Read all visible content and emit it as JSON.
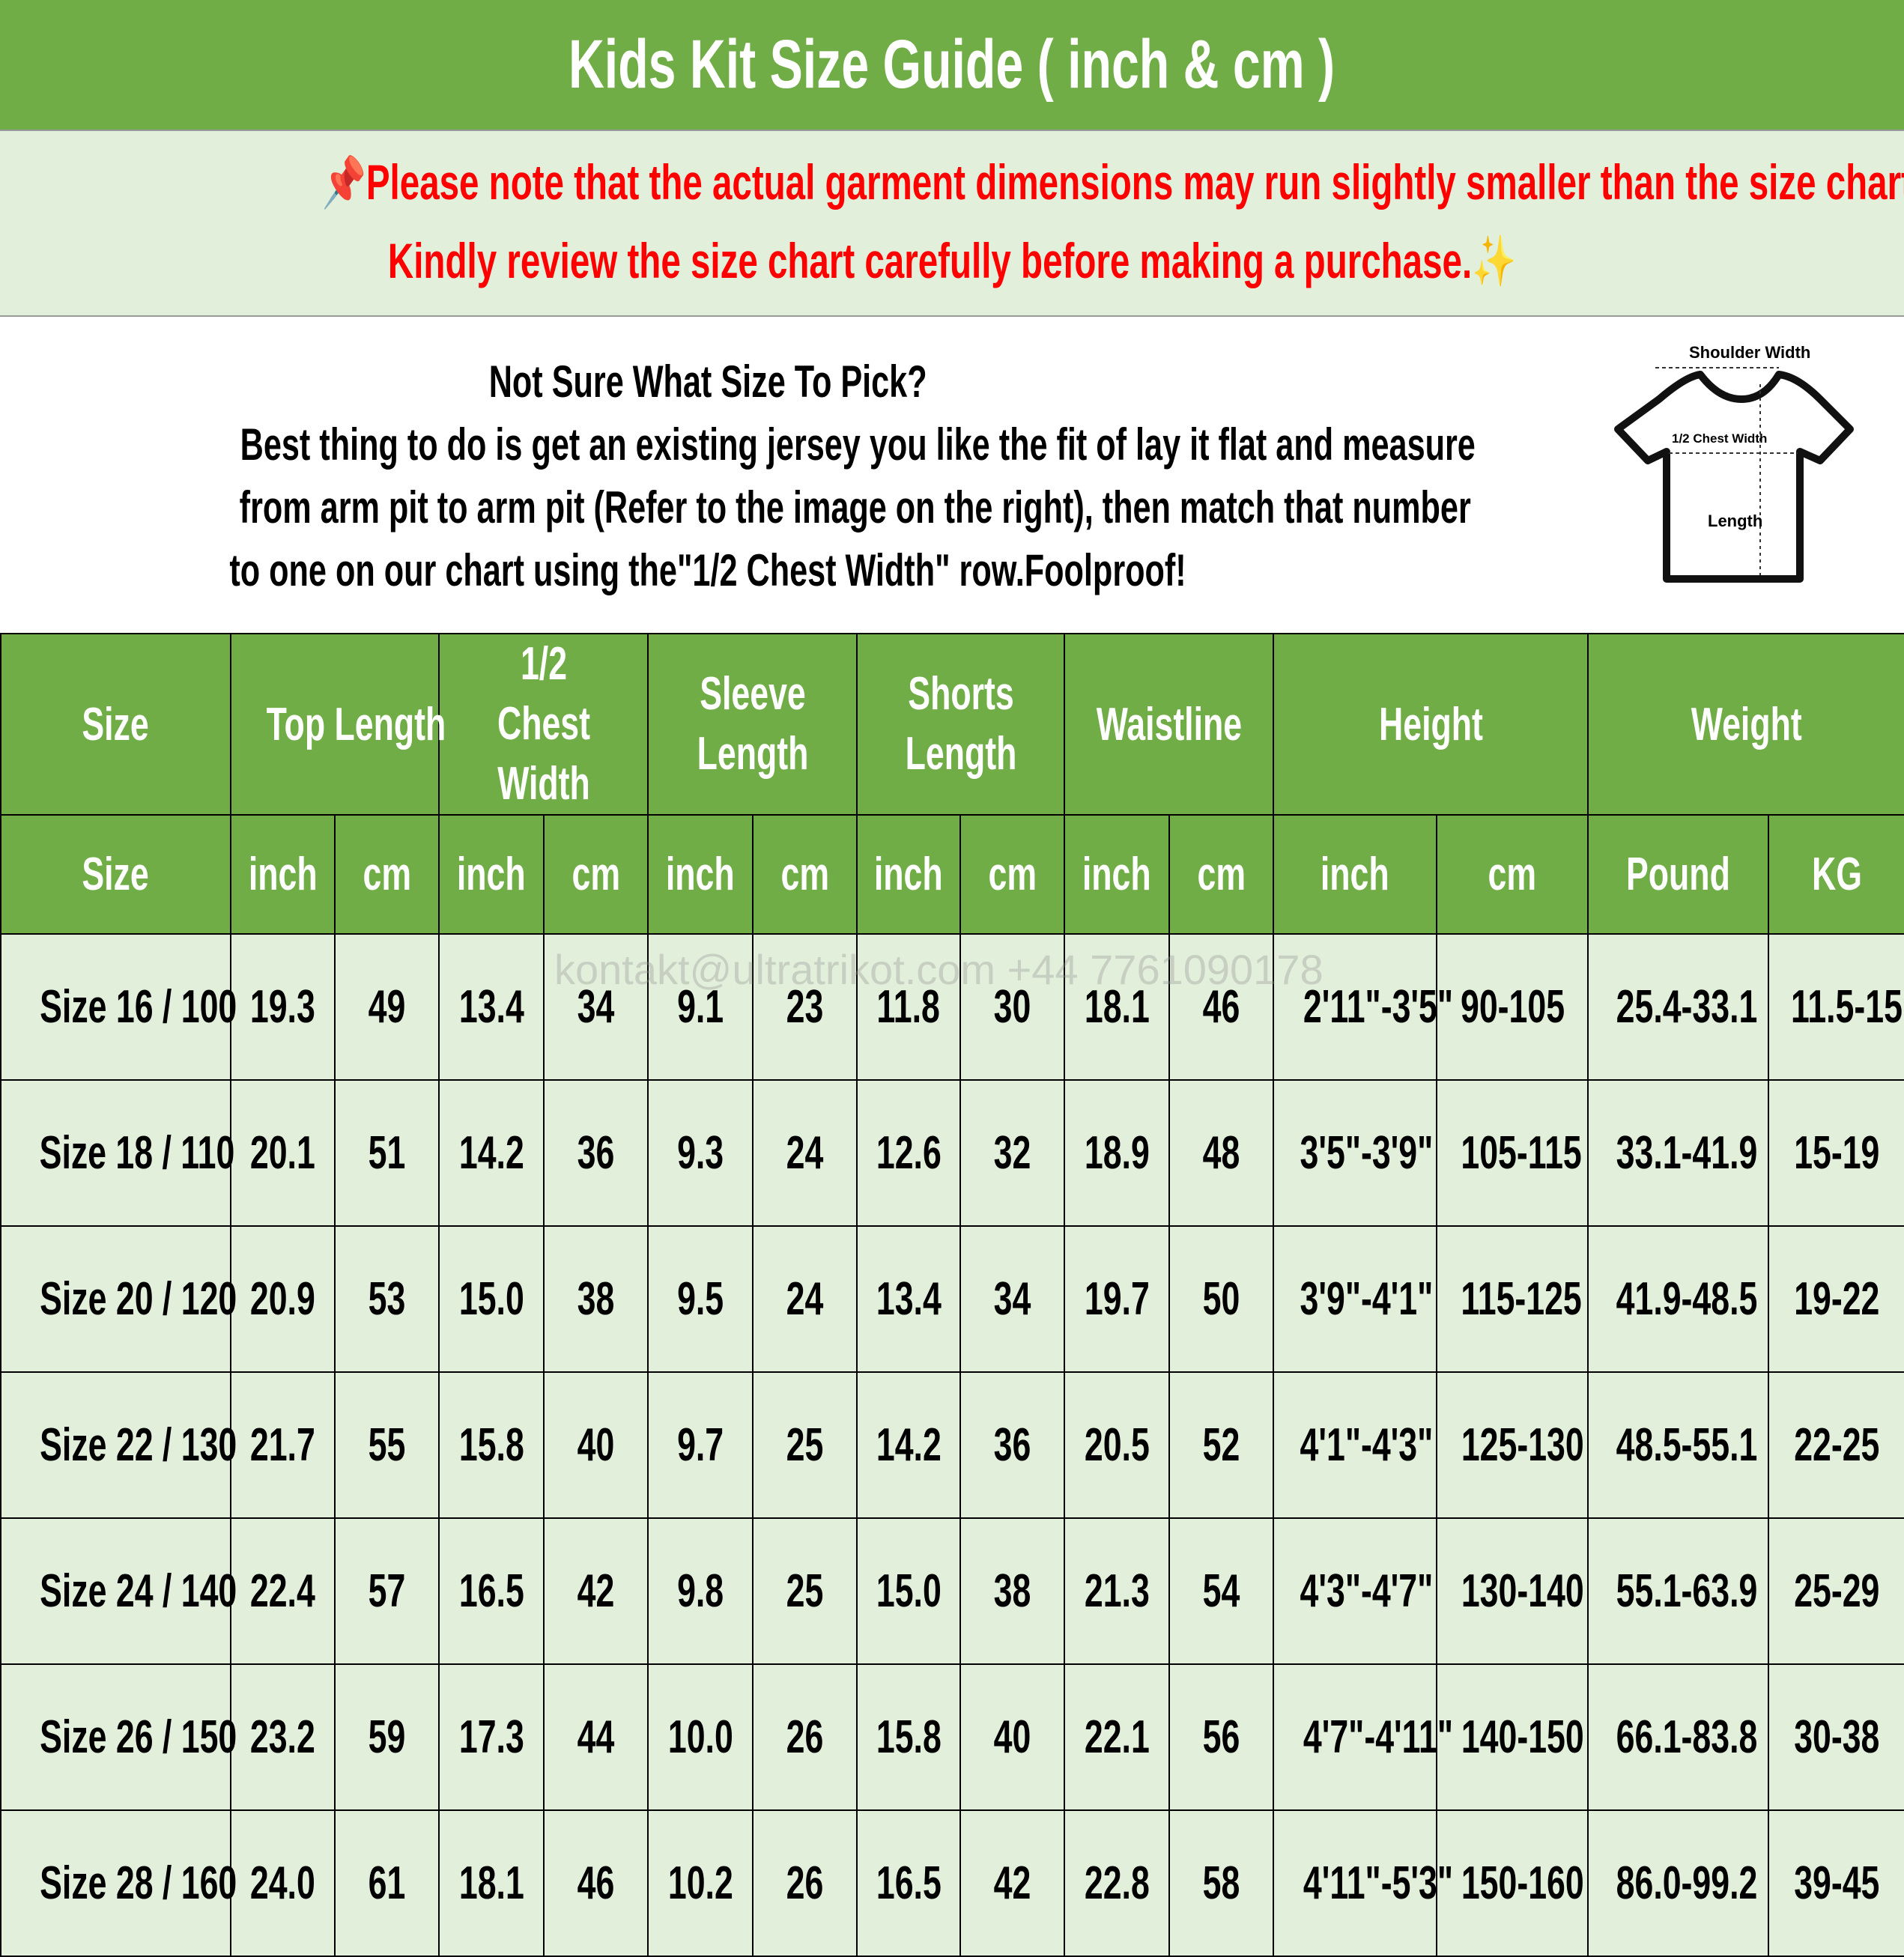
{
  "title": "Kids Kit Size Guide ( inch & cm )",
  "notice": {
    "line1": "Please note that the actual garment dimensions may run slightly smaller than the size chart",
    "line2": "Kindly review the size chart carefully before making a purchase.",
    "icons": [
      "pushpin-icon",
      "ruler-icon",
      "sparkle-icon"
    ],
    "color": "#FF0000"
  },
  "info": {
    "heading": "Not Sure What Size To Pick?",
    "lines": [
      "Best thing to do is get an existing jersey you like the fit of lay it flat and measure",
      "from arm pit to arm pit (Refer to the image on the right), then match that number",
      "to one on our chart using the\"1/2 Chest Width\" row.Foolproof!"
    ],
    "diagram": {
      "shoulder": "Shoulder Width",
      "chest": "1/2 Chest Width",
      "length": "Length"
    }
  },
  "watermark": "kontakt@ultratrikot.com   +44 7761090178",
  "colors": {
    "header_green": "#70AD47",
    "row_alt": "#E2EFDA"
  },
  "table": {
    "groups": [
      "Size",
      "Top Length",
      "1/2 Chest Width",
      "Sleeve Length",
      "Shorts Length",
      "Waistline",
      "Height",
      "Weight"
    ],
    "units": [
      "Size",
      "inch",
      "cm",
      "inch",
      "cm",
      "inch",
      "cm",
      "inch",
      "cm",
      "inch",
      "cm",
      "inch",
      "cm",
      "Pound",
      "KG"
    ],
    "rows": [
      [
        "Size 16 / 100",
        "19.3",
        "49",
        "13.4",
        "34",
        "9.1",
        "23",
        "11.8",
        "30",
        "18.1",
        "46",
        "2'11\"-3'5\"",
        "90-105",
        "25.4-33.1",
        "11.5-15"
      ],
      [
        "Size 18 / 110",
        "20.1",
        "51",
        "14.2",
        "36",
        "9.3",
        "24",
        "12.6",
        "32",
        "18.9",
        "48",
        "3'5\"-3'9\"",
        "105-115",
        "33.1-41.9",
        "15-19"
      ],
      [
        "Size 20 / 120",
        "20.9",
        "53",
        "15.0",
        "38",
        "9.5",
        "24",
        "13.4",
        "34",
        "19.7",
        "50",
        "3'9\"-4'1\"",
        "115-125",
        "41.9-48.5",
        "19-22"
      ],
      [
        "Size 22 / 130",
        "21.7",
        "55",
        "15.8",
        "40",
        "9.7",
        "25",
        "14.2",
        "36",
        "20.5",
        "52",
        "4'1\"-4'3\"",
        "125-130",
        "48.5-55.1",
        "22-25"
      ],
      [
        "Size 24 / 140",
        "22.4",
        "57",
        "16.5",
        "42",
        "9.8",
        "25",
        "15.0",
        "38",
        "21.3",
        "54",
        "4'3\"-4'7\"",
        "130-140",
        "55.1-63.9",
        "25-29"
      ],
      [
        "Size 26 / 150",
        "23.2",
        "59",
        "17.3",
        "44",
        "10.0",
        "26",
        "15.8",
        "40",
        "22.1",
        "56",
        "4'7\"-4'11\"",
        "140-150",
        "66.1-83.8",
        "30-38"
      ],
      [
        "Size 28 / 160",
        "24.0",
        "61",
        "18.1",
        "46",
        "10.2",
        "26",
        "16.5",
        "42",
        "22.8",
        "58",
        "4'11\"-5'3\"",
        "150-160",
        "86.0-99.2",
        "39-45"
      ]
    ]
  }
}
